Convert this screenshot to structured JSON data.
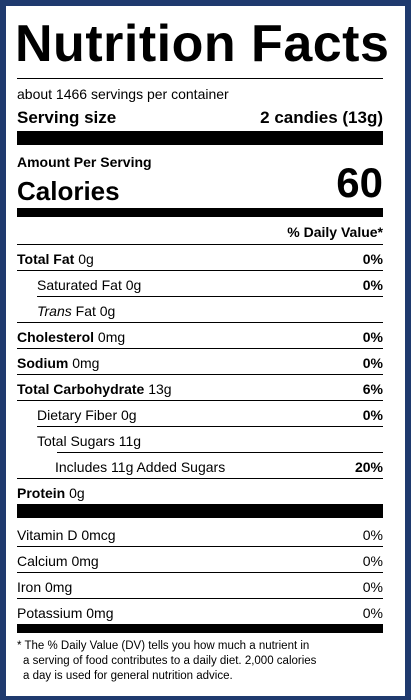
{
  "title": "Nutrition Facts",
  "servings_per_container": "about 1466 servings per container",
  "serving_size_label": "Serving size",
  "serving_size_value": "2 candies (13g)",
  "amount_per_serving": "Amount Per Serving",
  "calories_label": "Calories",
  "calories_value": "60",
  "daily_value_header": "% Daily Value*",
  "nutrients": {
    "total_fat": {
      "label": "Total Fat",
      "amount": "0g",
      "dv": "0%"
    },
    "saturated_fat": {
      "label": "Saturated Fat 0g",
      "dv": "0%"
    },
    "trans_fat": {
      "label_italic": "Trans",
      "label_rest": "Fat 0g"
    },
    "cholesterol": {
      "label": "Cholesterol",
      "amount": "0mg",
      "dv": "0%"
    },
    "sodium": {
      "label": "Sodium",
      "amount": "0mg",
      "dv": "0%"
    },
    "total_carbohydrate": {
      "label": "Total Carbohydrate",
      "amount": "13g",
      "dv": "6%"
    },
    "dietary_fiber": {
      "label": "Dietary Fiber 0g",
      "dv": "0%"
    },
    "total_sugars": {
      "label": "Total Sugars 11g"
    },
    "added_sugars": {
      "label": "Includes 11g Added Sugars",
      "dv": "20%"
    },
    "protein": {
      "label": "Protein",
      "amount": "0g"
    }
  },
  "vitamins": {
    "vitamin_d": {
      "label": "Vitamin D 0mcg",
      "dv": "0%"
    },
    "calcium": {
      "label": "Calcium 0mg",
      "dv": "0%"
    },
    "iron": {
      "label": "Iron 0mg",
      "dv": "0%"
    },
    "potassium": {
      "label": "Potassium 0mg",
      "dv": "0%"
    }
  },
  "footnote": {
    "line1": "* The % Daily Value (DV) tells you how much a nutrient in",
    "line2": "a serving of food contributes to a daily diet. 2,000 calories",
    "line3": "a day is used for general nutrition advice."
  },
  "colors": {
    "frame": "#1f3a6e",
    "label_bg": "#ffffff",
    "ink": "#000000"
  }
}
